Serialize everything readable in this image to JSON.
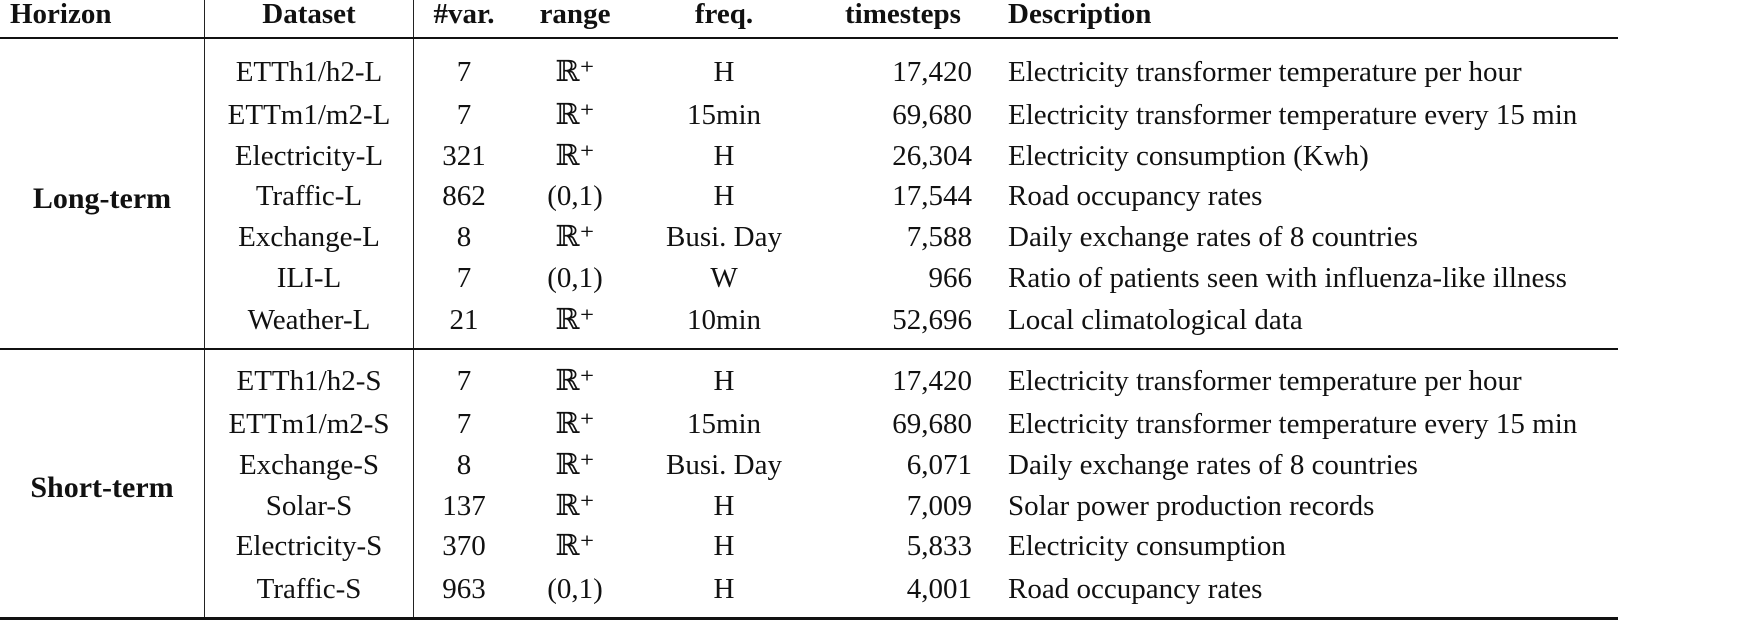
{
  "headers": {
    "horizon": "Horizon",
    "dataset": "Dataset",
    "num_vars": "#var.",
    "range": "range",
    "freq": "freq.",
    "timesteps": "timesteps",
    "description": "Description"
  },
  "groups": [
    {
      "horizon": "Long-term",
      "rows": [
        {
          "dataset": "ETTh1/h2-L",
          "num_vars": "7",
          "range": "ℝ⁺",
          "freq": "H",
          "timesteps": "17,420",
          "description": "Electricity transformer temperature per hour"
        },
        {
          "dataset": "ETTm1/m2-L",
          "num_vars": "7",
          "range": "ℝ⁺",
          "freq": "15min",
          "timesteps": "69,680",
          "description": "Electricity transformer temperature every 15 min"
        },
        {
          "dataset": "Electricity-L",
          "num_vars": "321",
          "range": "ℝ⁺",
          "freq": "H",
          "timesteps": "26,304",
          "description": "Electricity consumption (Kwh)"
        },
        {
          "dataset": "Traffic-L",
          "num_vars": "862",
          "range": "(0,1)",
          "freq": "H",
          "timesteps": "17,544",
          "description": "Road occupancy rates"
        },
        {
          "dataset": "Exchange-L",
          "num_vars": "8",
          "range": "ℝ⁺",
          "freq": "Busi. Day",
          "timesteps": "7,588",
          "description": "Daily exchange rates of 8 countries"
        },
        {
          "dataset": "ILI-L",
          "num_vars": "7",
          "range": "(0,1)",
          "freq": "W",
          "timesteps": "966",
          "description": "Ratio of patients seen with influenza-like illness"
        },
        {
          "dataset": "Weather-L",
          "num_vars": "21",
          "range": "ℝ⁺",
          "freq": "10min",
          "timesteps": "52,696",
          "description": "Local climatological data"
        }
      ]
    },
    {
      "horizon": "Short-term",
      "rows": [
        {
          "dataset": "ETTh1/h2-S",
          "num_vars": "7",
          "range": "ℝ⁺",
          "freq": "H",
          "timesteps": "17,420",
          "description": "Electricity transformer temperature per hour"
        },
        {
          "dataset": "ETTm1/m2-S",
          "num_vars": "7",
          "range": "ℝ⁺",
          "freq": "15min",
          "timesteps": "69,680",
          "description": "Electricity transformer temperature every 15 min"
        },
        {
          "dataset": "Exchange-S",
          "num_vars": "8",
          "range": "ℝ⁺",
          "freq": "Busi. Day",
          "timesteps": "6,071",
          "description": "Daily exchange rates of 8 countries"
        },
        {
          "dataset": "Solar-S",
          "num_vars": "137",
          "range": "ℝ⁺",
          "freq": "H",
          "timesteps": "7,009",
          "description": "Solar power production records"
        },
        {
          "dataset": "Electricity-S",
          "num_vars": "370",
          "range": "ℝ⁺",
          "freq": "H",
          "timesteps": "5,833",
          "description": "Electricity consumption"
        },
        {
          "dataset": "Traffic-S",
          "num_vars": "963",
          "range": "(0,1)",
          "freq": "H",
          "timesteps": "4,001",
          "description": "Road occupancy rates"
        }
      ]
    }
  ]
}
